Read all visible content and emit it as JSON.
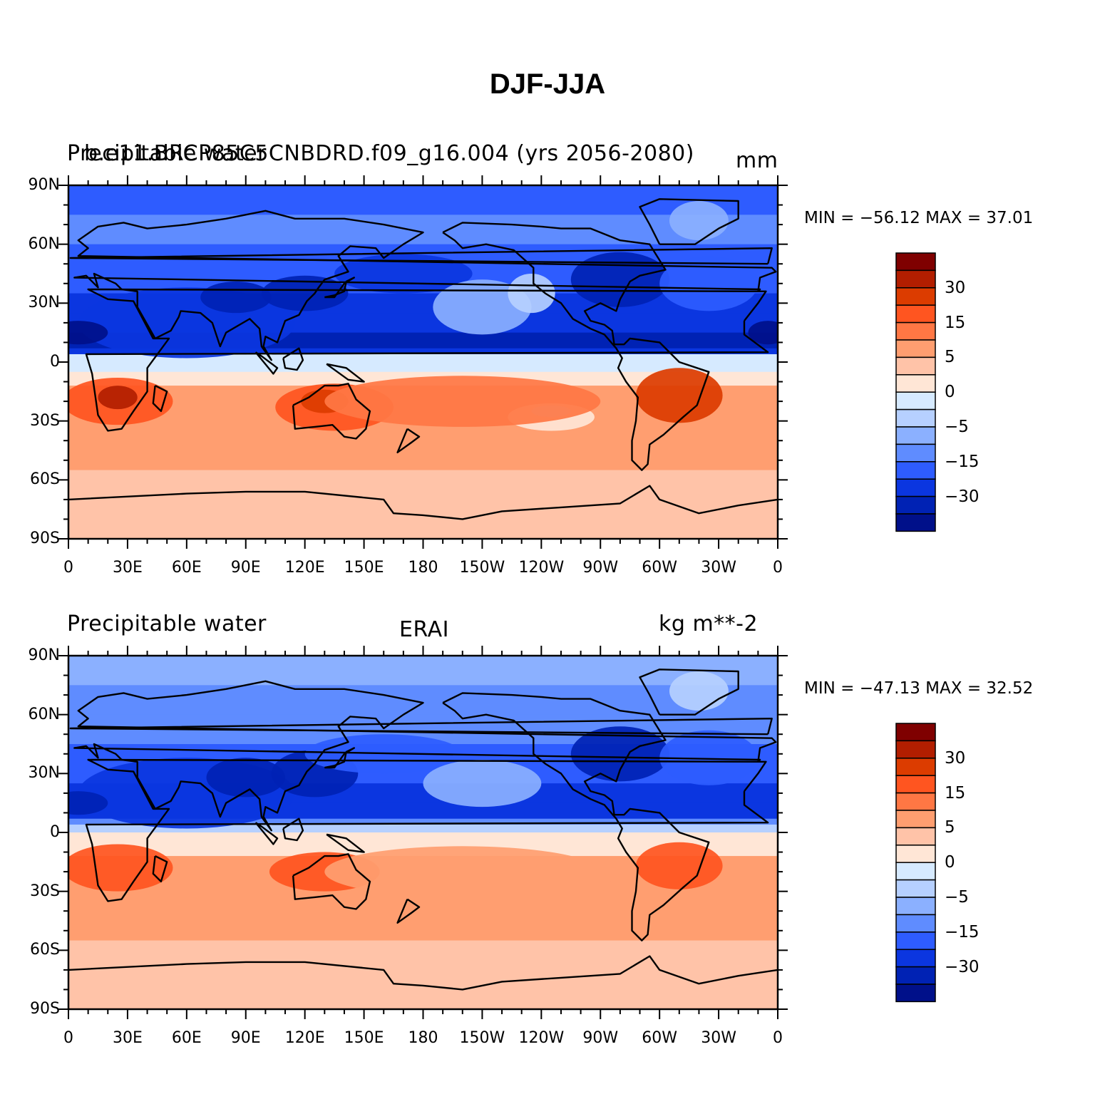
{
  "title": "DJF-JJA",
  "axes": {
    "lat_labels": [
      "90N",
      "60N",
      "30N",
      "0",
      "30S",
      "60S",
      "90S"
    ],
    "lon_labels": [
      "0",
      "30E",
      "60E",
      "90E",
      "120E",
      "150E",
      "180",
      "150W",
      "120W",
      "90W",
      "60W",
      "30W",
      "0"
    ]
  },
  "colorbar": {
    "labels": [
      "30",
      "15",
      "5",
      "0",
      "−5",
      "−15",
      "−30"
    ],
    "colors": [
      "#7f0000",
      "#b21e00",
      "#dc3c00",
      "#ff5520",
      "#ff7744",
      "#ff9e70",
      "#ffc3a8",
      "#ffe6d6",
      "#d6eaff",
      "#b6d0ff",
      "#8bb0ff",
      "#5f8cff",
      "#2e5cff",
      "#0b36e0",
      "#0022b4",
      "#00108a"
    ],
    "levels": [
      40,
      35,
      30,
      20,
      15,
      10,
      5,
      2.5,
      0,
      -2.5,
      -5,
      -10,
      -15,
      -20,
      -30,
      -35,
      -40
    ]
  },
  "panels": [
    {
      "left_title": "Precipitable water",
      "center_title": "b.e11.BRCP85C5CNBDRD.f09_g16.004 (yrs 2056-2080)",
      "right_title": "mm",
      "min_label": "MIN = ",
      "min_value": "−56.12",
      "max_label": "MAX = ",
      "max_value": "37.01"
    },
    {
      "left_title": "Precipitable water",
      "center_title": "ERAI",
      "right_title": "kg m**-2",
      "min_label": "MIN = ",
      "min_value": "−47.13",
      "max_label": "MAX = ",
      "max_value": "32.52"
    }
  ]
}
